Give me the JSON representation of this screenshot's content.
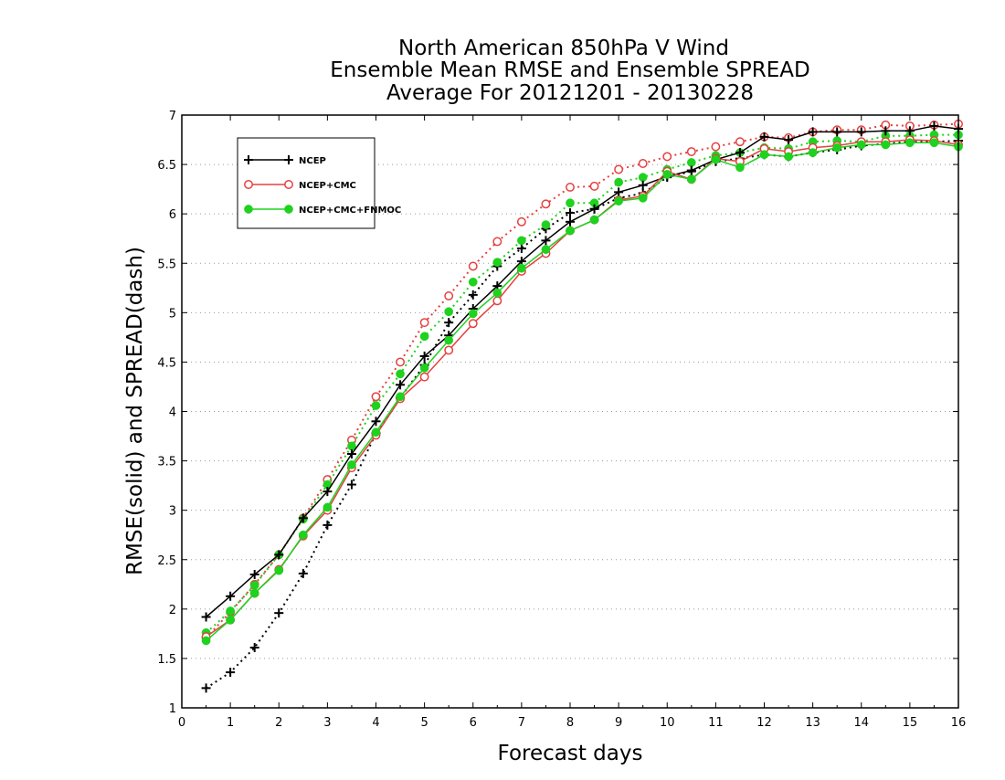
{
  "chart_data": {
    "type": "line",
    "title": [
      "North American 850hPa V Wind",
      "Ensemble Mean RMSE and Ensemble SPREAD",
      "Average For 20121201 - 20130228"
    ],
    "xlabel": "Forecast days",
    "ylabel": "RMSE(solid) and SPREAD(dash)",
    "xlim": [
      0,
      16
    ],
    "ylim": [
      1,
      7
    ],
    "xticks": [
      "0",
      "1",
      "2",
      "3",
      "4",
      "5",
      "6",
      "7",
      "8",
      "9",
      "10",
      "11",
      "12",
      "13",
      "14",
      "15",
      "16"
    ],
    "yticks": [
      "1",
      "1.5",
      "2",
      "2.5",
      "3",
      "3.5",
      "4",
      "4.5",
      "5",
      "5.5",
      "6",
      "6.5",
      "7"
    ],
    "grid": "horizontal dotted",
    "legend_position": "top-left",
    "x": [
      0.5,
      1,
      1.5,
      2,
      2.5,
      3,
      3.5,
      4,
      4.5,
      5,
      5.5,
      6,
      6.5,
      7,
      7.5,
      8,
      8.5,
      9,
      9.5,
      10,
      10.5,
      11,
      11.5,
      12,
      12.5,
      13,
      13.5,
      14,
      14.5,
      15,
      15.5,
      16
    ],
    "series": [
      {
        "name": "NCEP",
        "style": "solid",
        "marker": "plus",
        "color": "#000000",
        "values": [
          1.92,
          2.13,
          2.35,
          2.55,
          2.92,
          3.19,
          3.57,
          3.9,
          4.27,
          4.56,
          4.77,
          5.04,
          5.27,
          5.52,
          5.73,
          5.92,
          6.05,
          6.22,
          6.29,
          6.38,
          6.44,
          6.55,
          6.62,
          6.78,
          6.75,
          6.83,
          6.83,
          6.83,
          6.84,
          6.84,
          6.89,
          6.86
        ]
      },
      {
        "name": "NCEP+CMC",
        "style": "solid",
        "marker": "open-circle",
        "color": "#e64040",
        "values": [
          1.72,
          1.89,
          2.16,
          2.4,
          2.74,
          3.0,
          3.43,
          3.76,
          4.13,
          4.35,
          4.62,
          4.89,
          5.12,
          5.42,
          5.6,
          5.83,
          5.94,
          6.14,
          6.18,
          6.43,
          6.35,
          6.56,
          6.53,
          6.66,
          6.63,
          6.67,
          6.69,
          6.73,
          6.73,
          6.75,
          6.74,
          6.7
        ]
      },
      {
        "name": "NCEP+CMC+FNMOC",
        "style": "solid",
        "marker": "filled-circle",
        "color": "#1ed21e",
        "values": [
          1.68,
          1.89,
          2.16,
          2.39,
          2.75,
          3.03,
          3.46,
          3.79,
          4.15,
          4.44,
          4.72,
          4.99,
          5.2,
          5.45,
          5.64,
          5.83,
          5.94,
          6.13,
          6.16,
          6.4,
          6.35,
          6.55,
          6.47,
          6.6,
          6.58,
          6.62,
          6.67,
          6.7,
          6.7,
          6.72,
          6.72,
          6.68
        ]
      },
      {
        "name": "NCEP spread",
        "style": "dotted",
        "marker": "plus",
        "color": "#000000",
        "values": [
          1.2,
          1.36,
          1.61,
          1.96,
          2.36,
          2.85,
          3.26,
          3.78,
          4.14,
          4.47,
          4.9,
          5.18,
          5.47,
          5.65,
          5.85,
          6.01,
          6.05,
          6.16,
          6.21,
          6.37,
          6.43,
          6.53,
          6.56,
          6.6,
          6.58,
          6.62,
          6.65,
          6.69,
          6.71,
          6.73,
          6.73,
          6.74
        ]
      },
      {
        "name": "NCEP+CMC spread",
        "style": "dotted",
        "marker": "open-circle",
        "color": "#e64040",
        "values": [
          1.71,
          1.97,
          2.25,
          2.55,
          2.92,
          3.31,
          3.71,
          4.15,
          4.5,
          4.9,
          5.17,
          5.47,
          5.72,
          5.92,
          6.1,
          6.27,
          6.28,
          6.45,
          6.51,
          6.58,
          6.63,
          6.68,
          6.73,
          6.78,
          6.77,
          6.83,
          6.85,
          6.85,
          6.9,
          6.89,
          6.9,
          6.91
        ]
      },
      {
        "name": "NCEP+CMC+FNMOC spread",
        "style": "dotted",
        "marker": "filled-circle",
        "color": "#1ed21e",
        "values": [
          1.76,
          1.98,
          2.24,
          2.55,
          2.91,
          3.26,
          3.65,
          4.06,
          4.38,
          4.76,
          5.01,
          5.31,
          5.51,
          5.73,
          5.89,
          6.11,
          6.11,
          6.32,
          6.37,
          6.45,
          6.52,
          6.59,
          6.62,
          6.67,
          6.66,
          6.73,
          6.74,
          6.73,
          6.79,
          6.79,
          6.8,
          6.8
        ]
      }
    ],
    "legend": [
      "NCEP",
      "NCEP+CMC",
      "NCEP+CMC+FNMOC"
    ]
  }
}
